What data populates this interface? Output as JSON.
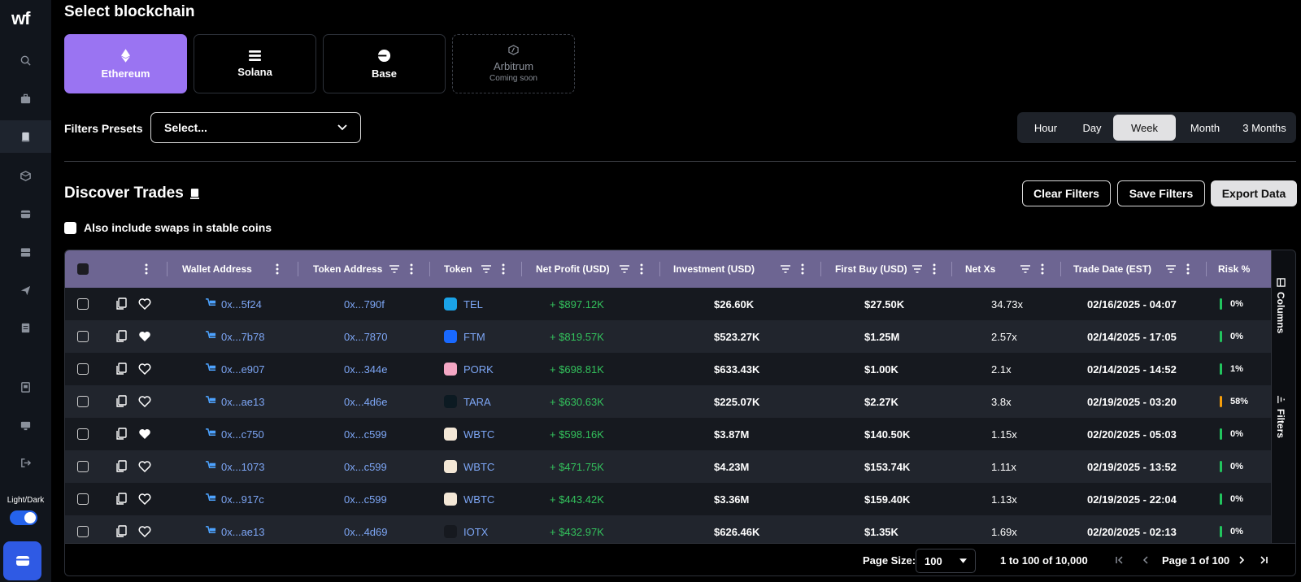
{
  "sidebar": {
    "logo": "wf",
    "icons": [
      "search-icon",
      "briefcase-icon",
      "receipt-icon",
      "cube-icon",
      "card-icon",
      "database-icon",
      "send-icon",
      "document-icon",
      "ledger-icon",
      "monitor-icon",
      "logout-icon"
    ],
    "theme_label": "Light/Dark",
    "accent": "#2f5ae4"
  },
  "blockchain": {
    "title": "Select blockchain",
    "chains": [
      {
        "label": "Ethereum",
        "icon": "ethereum-icon"
      },
      {
        "label": "Solana",
        "icon": "solana-icon"
      },
      {
        "label": "Base",
        "icon": "base-icon"
      },
      {
        "label": "Arbitrum",
        "icon": "arbitrum-icon",
        "sub": "Coming soon"
      }
    ]
  },
  "filters": {
    "label": "Filters Presets",
    "select_value": "Select..."
  },
  "timeframe": {
    "options": [
      "Hour",
      "Day",
      "Week",
      "Month",
      "3 Months"
    ],
    "selected": "Week"
  },
  "discover": {
    "title": "Discover Trades",
    "buttons": {
      "clear": "Clear Filters",
      "save": "Save Filters",
      "export": "Export Data"
    },
    "stable_label": "Also include swaps in stable coins"
  },
  "table": {
    "columns": [
      "Wallet Address",
      "Token Address",
      "Token",
      "Net Profit (USD)",
      "Investment (USD)",
      "First Buy (USD)",
      "Net Xs",
      "Trade Date (EST)",
      "Risk %"
    ],
    "rows": [
      {
        "wallet": "0x...5f24",
        "token_addr": "0x...790f",
        "token": "TEL",
        "profit": "+ $897.12K",
        "investment": "$26.60K",
        "first_buy": "$27.50K",
        "net_xs": "34.73x",
        "date": "02/16/2025 - 04:07",
        "risk": "0%",
        "risk_color": "#22c55e",
        "liked": false,
        "token_color": "#1aa3e8"
      },
      {
        "wallet": "0x...7b78",
        "token_addr": "0x...7870",
        "token": "FTM",
        "profit": "+ $819.57K",
        "investment": "$523.27K",
        "first_buy": "$1.25M",
        "net_xs": "2.57x",
        "date": "02/14/2025 - 17:05",
        "risk": "0%",
        "risk_color": "#22c55e",
        "liked": true,
        "token_color": "#1969ff"
      },
      {
        "wallet": "0x...e907",
        "token_addr": "0x...344e",
        "token": "PORK",
        "profit": "+ $698.81K",
        "investment": "$633.43K",
        "first_buy": "$1.00K",
        "net_xs": "2.1x",
        "date": "02/14/2025 - 14:52",
        "risk": "1%",
        "risk_color": "#22c55e",
        "liked": false,
        "token_color": "#f4a7c4"
      },
      {
        "wallet": "0x...ae13",
        "token_addr": "0x...4d6e",
        "token": "TARA",
        "profit": "+ $630.63K",
        "investment": "$225.07K",
        "first_buy": "$2.27K",
        "net_xs": "3.8x",
        "date": "02/19/2025 - 03:20",
        "risk": "58%",
        "risk_color": "#f59e0b",
        "liked": false,
        "token_color": "#0c1a22"
      },
      {
        "wallet": "0x...c750",
        "token_addr": "0x...c599",
        "token": "WBTC",
        "profit": "+ $598.16K",
        "investment": "$3.87M",
        "first_buy": "$140.50K",
        "net_xs": "1.15x",
        "date": "02/20/2025 - 05:03",
        "risk": "0%",
        "risk_color": "#22c55e",
        "liked": true,
        "token_color": "#f3e7d6"
      },
      {
        "wallet": "0x...1073",
        "token_addr": "0x...c599",
        "token": "WBTC",
        "profit": "+ $471.75K",
        "investment": "$4.23M",
        "first_buy": "$153.74K",
        "net_xs": "1.11x",
        "date": "02/19/2025 - 13:52",
        "risk": "0%",
        "risk_color": "#22c55e",
        "liked": false,
        "token_color": "#f3e7d6"
      },
      {
        "wallet": "0x...917c",
        "token_addr": "0x...c599",
        "token": "WBTC",
        "profit": "+ $443.42K",
        "investment": "$3.36M",
        "first_buy": "$159.40K",
        "net_xs": "1.13x",
        "date": "02/19/2025 - 22:04",
        "risk": "0%",
        "risk_color": "#22c55e",
        "liked": false,
        "token_color": "#f3e7d6"
      },
      {
        "wallet": "0x...ae13",
        "token_addr": "0x...4d69",
        "token": "IOTX",
        "profit": "+ $432.97K",
        "investment": "$626.46K",
        "first_buy": "$1.35K",
        "net_xs": "1.69x",
        "date": "02/20/2025 - 02:13",
        "risk": "0%",
        "risk_color": "#22c55e",
        "liked": false,
        "token_color": "#16191f"
      }
    ],
    "side_tabs": {
      "columns": "Columns",
      "filters": "Filters"
    }
  },
  "pagination": {
    "page_size_label": "Page Size:",
    "page_size": "100",
    "range": "1 to 100 of 10,000",
    "page_prefix": "Page",
    "page": "1",
    "page_of": "of",
    "total_pages": "100"
  }
}
